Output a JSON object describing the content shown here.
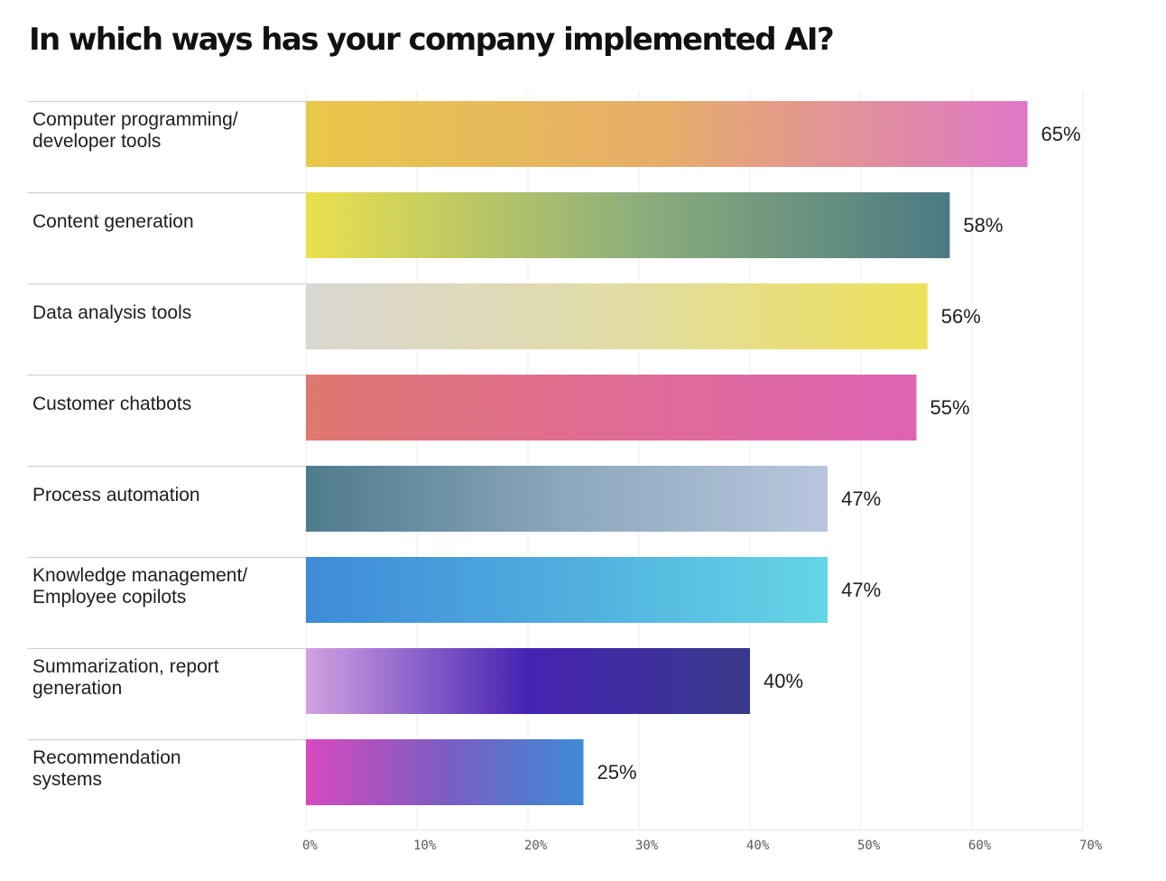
{
  "title": "In which ways has your company implemented AI?",
  "chart_data": {
    "type": "bar",
    "orientation": "horizontal",
    "title": "In which ways has your company implemented AI?",
    "xlabel": "",
    "ylabel": "",
    "xlim": [
      0,
      70
    ],
    "grid": true,
    "categories": [
      "Computer programming/\ndeveloper tools",
      "Content generation",
      "Data analysis tools",
      "Customer chatbots",
      "Process automation",
      "Knowledge management/\nEmployee copilots",
      "Summarization, report\ngeneration",
      "Recommendation\nsystems"
    ],
    "values": [
      65,
      58,
      56,
      55,
      47,
      47,
      40,
      25
    ],
    "value_labels": [
      "65%",
      "58%",
      "56%",
      "55%",
      "47%",
      "47%",
      "40%",
      "25%"
    ],
    "x_ticks": [
      "0%",
      "10%",
      "20%",
      "30%",
      "40%",
      "50%",
      "60%",
      "70%"
    ],
    "bar_gradients": [
      [
        "#e8c84a",
        "#e5ad6a",
        "#de77c8"
      ],
      [
        "#ebe04e",
        "#8fb07a",
        "#4a7a84"
      ],
      [
        "#d9d7d2",
        "#e2dca6",
        "#ede05a"
      ],
      [
        "#de7870",
        "#df6c94",
        "#de64b4"
      ],
      [
        "#4e7b8c",
        "#8ca8bc",
        "#b8c6de"
      ],
      [
        "#3f8ad8",
        "#50aede",
        "#64d6e6"
      ],
      [
        "#d2a2e2",
        "#4522b2",
        "#373a8a"
      ],
      [
        "#d64abe",
        "#7c5cc2",
        "#3e8ad6"
      ]
    ]
  }
}
